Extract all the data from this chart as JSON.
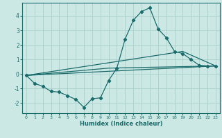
{
  "xlabel": "Humidex (Indice chaleur)",
  "bg_color": "#cce8e4",
  "grid_color": "#aacfcb",
  "line_color": "#1a6b6b",
  "xlim": [
    -0.5,
    23.5
  ],
  "ylim": [
    -2.7,
    4.9
  ],
  "yticks": [
    -2,
    -1,
    0,
    1,
    2,
    3,
    4
  ],
  "xticks": [
    0,
    1,
    2,
    3,
    4,
    5,
    6,
    7,
    8,
    9,
    10,
    11,
    12,
    13,
    14,
    15,
    16,
    17,
    18,
    19,
    20,
    21,
    22,
    23
  ],
  "line1_x": [
    0,
    1,
    2,
    3,
    4,
    5,
    6,
    7,
    8,
    9,
    10,
    11,
    12,
    13,
    14,
    15,
    16,
    17,
    18,
    19,
    20,
    21,
    22,
    23
  ],
  "line1_y": [
    -0.1,
    -0.65,
    -0.85,
    -1.2,
    -1.25,
    -1.5,
    -1.75,
    -2.3,
    -1.7,
    -1.65,
    -0.45,
    0.4,
    2.4,
    3.7,
    4.3,
    4.55,
    3.1,
    2.5,
    1.55,
    1.4,
    1.0,
    0.6,
    0.55,
    0.55
  ],
  "line2_x": [
    0,
    23
  ],
  "line2_y": [
    -0.1,
    0.55
  ],
  "line3_x": [
    0,
    10,
    23
  ],
  "line3_y": [
    -0.1,
    0.4,
    0.55
  ],
  "line4_x": [
    0,
    19,
    23
  ],
  "line4_y": [
    -0.1,
    1.55,
    0.55
  ]
}
